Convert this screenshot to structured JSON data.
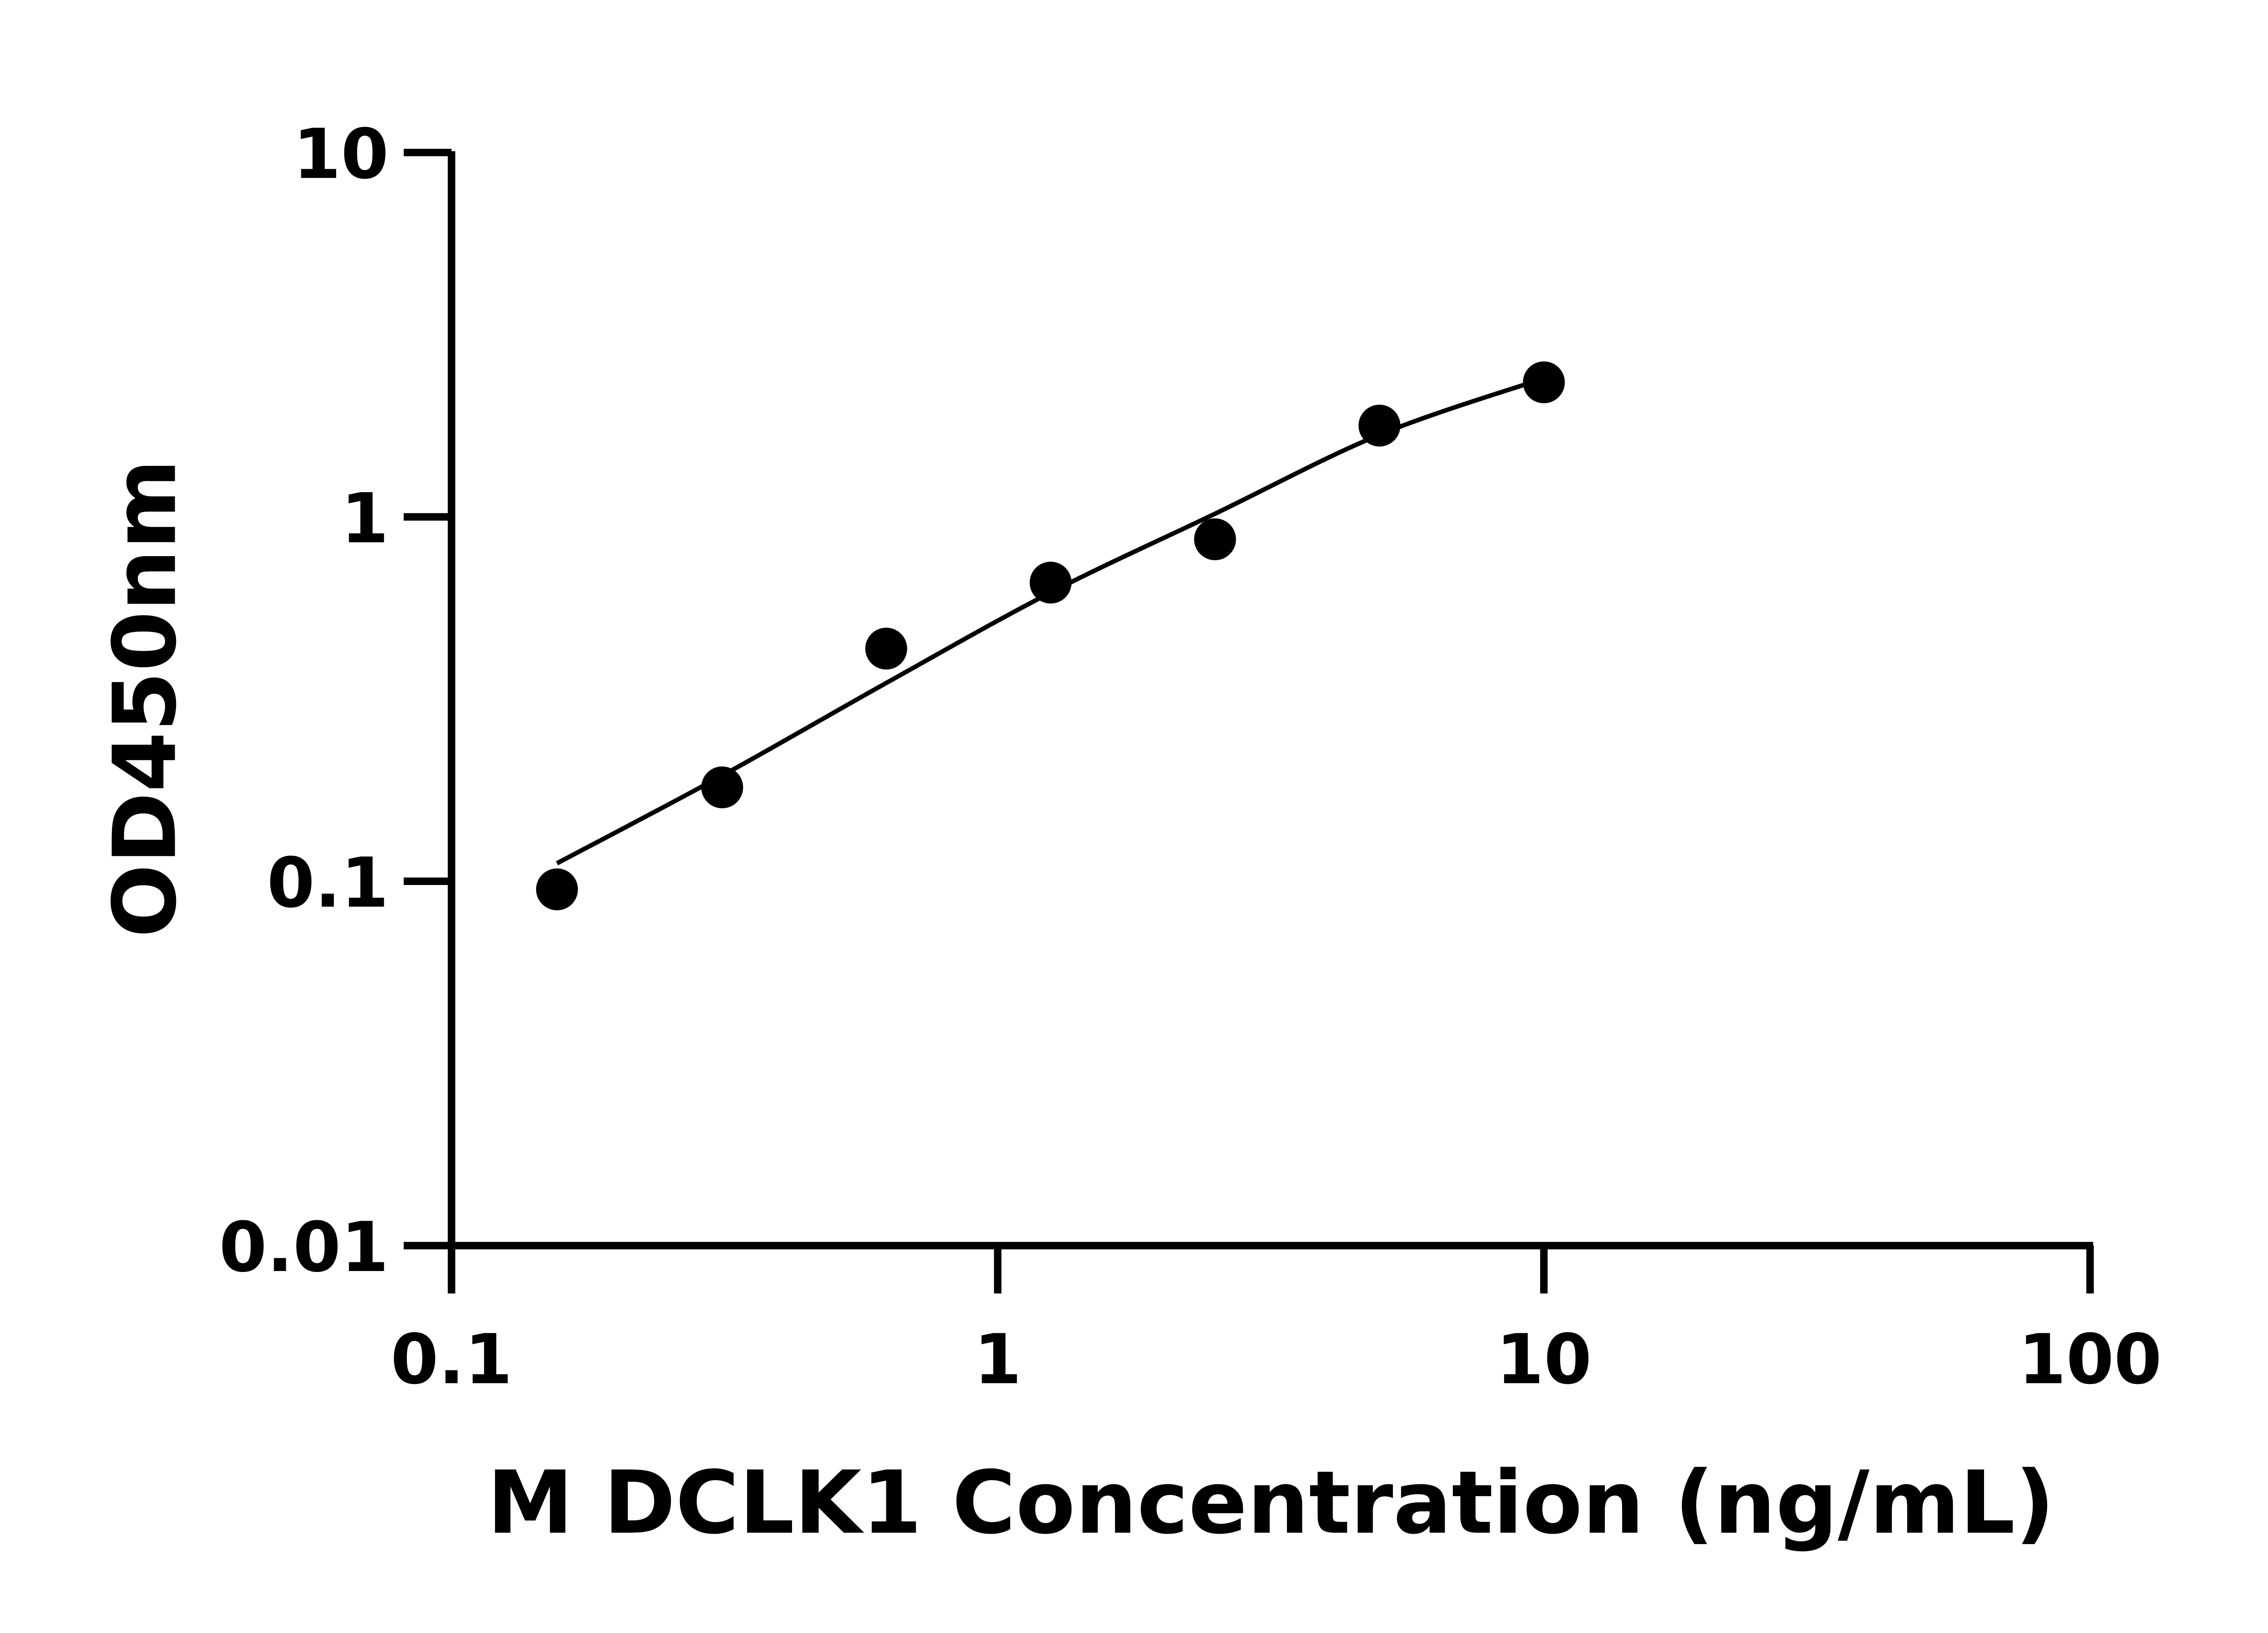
{
  "chart_data": {
    "type": "scatter",
    "title": "",
    "xlabel": "M DCLK1 Concentration (ng/mL)",
    "ylabel": "OD450nm",
    "x_scale": "log",
    "y_scale": "log",
    "xlim": [
      0.1,
      100
    ],
    "ylim": [
      0.01,
      10
    ],
    "x_ticks": [
      "0.1",
      "1",
      "10",
      "100"
    ],
    "y_ticks": [
      "0.01",
      "0.1",
      "1",
      "10"
    ],
    "grid": false,
    "marker_color": "#000000",
    "points": [
      {
        "x": 0.156,
        "y": 0.095
      },
      {
        "x": 0.313,
        "y": 0.181
      },
      {
        "x": 0.625,
        "y": 0.435
      },
      {
        "x": 1.25,
        "y": 0.66
      },
      {
        "x": 2.5,
        "y": 0.868
      },
      {
        "x": 5,
        "y": 1.78
      },
      {
        "x": 10,
        "y": 2.34
      }
    ],
    "fit_curve": [
      {
        "x": 0.156,
        "y": 0.112
      },
      {
        "x": 0.313,
        "y": 0.195
      },
      {
        "x": 0.625,
        "y": 0.35
      },
      {
        "x": 1.25,
        "y": 0.62
      },
      {
        "x": 2.5,
        "y": 1.02
      },
      {
        "x": 5,
        "y": 1.68
      },
      {
        "x": 10,
        "y": 2.4
      }
    ]
  }
}
